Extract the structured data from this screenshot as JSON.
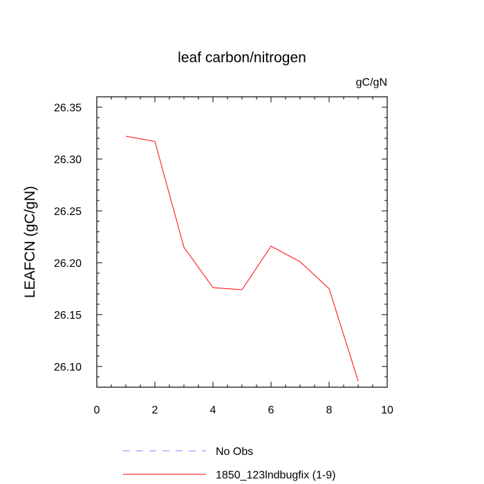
{
  "chart_data": {
    "type": "line",
    "title": "leaf carbon/nitrogen",
    "units": "gC/gN",
    "xlabel": "",
    "ylabel": "LEAFCN  (gC/gN)",
    "xlim": [
      0,
      10
    ],
    "ylim": [
      26.08,
      26.36
    ],
    "xticks": [
      0,
      2,
      4,
      6,
      8,
      10
    ],
    "xtick_labels": [
      "0",
      "2",
      "4",
      "6",
      "8",
      "10"
    ],
    "xminor_step": 0.5,
    "yticks": [
      26.1,
      26.15,
      26.2,
      26.25,
      26.3,
      26.35
    ],
    "ytick_labels": [
      "26.10",
      "26.15",
      "26.20",
      "26.25",
      "26.30",
      "26.35"
    ],
    "yminor_step": 0.01,
    "grid": false,
    "series": [
      {
        "name": "No Obs",
        "style": "dashed",
        "color": "#8080ff",
        "x": [],
        "values": []
      },
      {
        "name": "1850_123lndbugfix (1-9)",
        "style": "solid",
        "color": "#ff0000",
        "x": [
          1,
          2,
          3,
          4,
          5,
          6,
          7,
          8,
          9
        ],
        "values": [
          26.322,
          26.317,
          26.215,
          26.176,
          26.174,
          26.216,
          26.201,
          26.175,
          26.086
        ]
      }
    ],
    "legend_position": "bottom-left"
  }
}
